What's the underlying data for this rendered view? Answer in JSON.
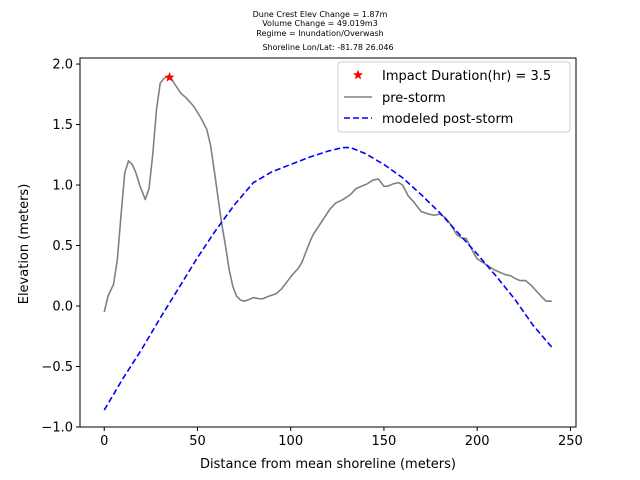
{
  "chart_data": {
    "type": "line",
    "title_lines": [
      "Dune Crest Elev Change = 1.87m",
      "Volume Change = 49.019m3",
      "Regime = Inundation/Overwash",
      "Shoreline Lon/Lat: -81.78 26.046"
    ],
    "xlabel": "Distance from mean shoreline (meters)",
    "ylabel": "Elevation (meters)",
    "xlim": [
      -13,
      253
    ],
    "ylim": [
      -1.0,
      2.05
    ],
    "xticks": [
      0,
      50,
      100,
      150,
      200,
      250
    ],
    "xtick_labels": [
      "0",
      "50",
      "100",
      "150",
      "200",
      "250"
    ],
    "yticks": [
      -1.0,
      -0.5,
      0.0,
      0.5,
      1.0,
      1.5,
      2.0
    ],
    "ytick_labels": [
      "−1.0",
      "−0.5",
      "0.0",
      "0.5",
      "1.0",
      "1.5",
      "2.0"
    ],
    "legend_position": "top-right",
    "series": [
      {
        "name": "Impact Duration(hr) = 3.5",
        "kind": "marker",
        "marker": "star",
        "color": "#ff0000",
        "points": [
          [
            35,
            1.89
          ]
        ]
      },
      {
        "name": "pre-storm",
        "kind": "line",
        "style": "solid",
        "color": "#808080",
        "points": [
          [
            0,
            -0.05
          ],
          [
            2,
            0.08
          ],
          [
            5,
            0.18
          ],
          [
            7,
            0.38
          ],
          [
            9,
            0.75
          ],
          [
            11,
            1.1
          ],
          [
            13,
            1.2
          ],
          [
            15,
            1.17
          ],
          [
            17,
            1.1
          ],
          [
            19,
            1.0
          ],
          [
            22,
            0.88
          ],
          [
            24,
            0.97
          ],
          [
            26,
            1.25
          ],
          [
            28,
            1.62
          ],
          [
            30,
            1.84
          ],
          [
            32,
            1.88
          ],
          [
            34,
            1.9
          ],
          [
            36,
            1.88
          ],
          [
            38,
            1.83
          ],
          [
            41,
            1.76
          ],
          [
            44,
            1.72
          ],
          [
            48,
            1.65
          ],
          [
            52,
            1.55
          ],
          [
            55,
            1.46
          ],
          [
            57,
            1.33
          ],
          [
            59,
            1.12
          ],
          [
            61,
            0.9
          ],
          [
            63,
            0.68
          ],
          [
            65,
            0.5
          ],
          [
            67,
            0.3
          ],
          [
            69,
            0.16
          ],
          [
            71,
            0.08
          ],
          [
            73,
            0.05
          ],
          [
            75,
            0.04
          ],
          [
            77,
            0.05
          ],
          [
            80,
            0.07
          ],
          [
            83,
            0.06
          ],
          [
            85,
            0.06
          ],
          [
            88,
            0.08
          ],
          [
            92,
            0.1
          ],
          [
            95,
            0.14
          ],
          [
            98,
            0.2
          ],
          [
            101,
            0.26
          ],
          [
            104,
            0.31
          ],
          [
            106,
            0.36
          ],
          [
            108,
            0.44
          ],
          [
            110,
            0.52
          ],
          [
            112,
            0.59
          ],
          [
            115,
            0.66
          ],
          [
            118,
            0.73
          ],
          [
            121,
            0.8
          ],
          [
            124,
            0.85
          ],
          [
            128,
            0.88
          ],
          [
            132,
            0.92
          ],
          [
            135,
            0.97
          ],
          [
            138,
            0.99
          ],
          [
            141,
            1.01
          ],
          [
            144,
            1.04
          ],
          [
            147,
            1.05
          ],
          [
            150,
            0.99
          ],
          [
            152,
            0.99
          ],
          [
            155,
            1.01
          ],
          [
            158,
            1.02
          ],
          [
            160,
            1.0
          ],
          [
            163,
            0.91
          ],
          [
            166,
            0.86
          ],
          [
            170,
            0.78
          ],
          [
            174,
            0.76
          ],
          [
            177,
            0.75
          ],
          [
            180,
            0.76
          ],
          [
            183,
            0.73
          ],
          [
            186,
            0.67
          ],
          [
            189,
            0.59
          ],
          [
            192,
            0.56
          ],
          [
            194,
            0.56
          ],
          [
            197,
            0.47
          ],
          [
            200,
            0.39
          ],
          [
            203,
            0.36
          ],
          [
            206,
            0.33
          ],
          [
            209,
            0.3
          ],
          [
            212,
            0.28
          ],
          [
            215,
            0.26
          ],
          [
            218,
            0.25
          ],
          [
            220,
            0.23
          ],
          [
            223,
            0.21
          ],
          [
            226,
            0.21
          ],
          [
            229,
            0.17
          ],
          [
            232,
            0.12
          ],
          [
            235,
            0.07
          ],
          [
            237,
            0.04
          ],
          [
            240,
            0.04
          ]
        ]
      },
      {
        "name": "modeled post-storm",
        "kind": "line",
        "style": "dashed",
        "color": "#0000ff",
        "points": [
          [
            0,
            -0.86
          ],
          [
            10,
            -0.6
          ],
          [
            20,
            -0.36
          ],
          [
            30,
            -0.1
          ],
          [
            40,
            0.15
          ],
          [
            50,
            0.4
          ],
          [
            60,
            0.63
          ],
          [
            70,
            0.84
          ],
          [
            80,
            1.02
          ],
          [
            90,
            1.11
          ],
          [
            100,
            1.17
          ],
          [
            110,
            1.23
          ],
          [
            120,
            1.28
          ],
          [
            128,
            1.31
          ],
          [
            132,
            1.31
          ],
          [
            140,
            1.26
          ],
          [
            150,
            1.17
          ],
          [
            160,
            1.06
          ],
          [
            170,
            0.92
          ],
          [
            180,
            0.77
          ],
          [
            190,
            0.6
          ],
          [
            200,
            0.43
          ],
          [
            210,
            0.25
          ],
          [
            220,
            0.06
          ],
          [
            230,
            -0.16
          ],
          [
            240,
            -0.34
          ]
        ]
      }
    ]
  }
}
